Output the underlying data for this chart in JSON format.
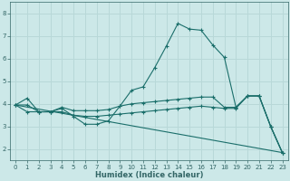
{
  "xlabel": "Humidex (Indice chaleur)",
  "background_color": "#cce8e8",
  "grid_color": "#b8d8d8",
  "line_color": "#1a6e6a",
  "xlim": [
    -0.5,
    23.5
  ],
  "ylim": [
    1.5,
    8.5
  ],
  "yticks": [
    2,
    3,
    4,
    5,
    6,
    7,
    8
  ],
  "xticks": [
    0,
    1,
    2,
    3,
    4,
    5,
    6,
    7,
    8,
    9,
    10,
    11,
    12,
    13,
    14,
    15,
    16,
    17,
    18,
    19,
    20,
    21,
    22,
    23
  ],
  "xlabel_fontsize": 6.0,
  "tick_fontsize": 5.0,
  "lines": [
    {
      "x": [
        0,
        1,
        2,
        3,
        4,
        5,
        6,
        7,
        8,
        9,
        10,
        11,
        12,
        13,
        14,
        15,
        16,
        17,
        18,
        19,
        20,
        21,
        22,
        23
      ],
      "y": [
        3.95,
        4.25,
        3.65,
        3.65,
        3.8,
        3.45,
        3.1,
        3.1,
        3.25,
        3.9,
        4.6,
        4.75,
        5.6,
        6.55,
        7.55,
        7.3,
        7.25,
        6.6,
        6.05,
        3.85,
        4.35,
        4.35,
        3.0,
        1.85
      ],
      "marker": true
    },
    {
      "x": [
        0,
        1,
        2,
        3,
        4,
        5,
        6,
        7,
        8,
        9,
        10,
        11,
        12,
        13,
        14,
        15,
        16,
        17,
        18,
        19,
        20,
        21,
        22,
        23
      ],
      "y": [
        3.95,
        3.95,
        3.65,
        3.65,
        3.85,
        3.7,
        3.7,
        3.7,
        3.75,
        3.9,
        4.0,
        4.05,
        4.1,
        4.15,
        4.2,
        4.25,
        4.3,
        4.3,
        3.85,
        3.85,
        4.35,
        4.35,
        3.0,
        1.85
      ],
      "marker": true
    },
    {
      "x": [
        0,
        1,
        2,
        3,
        4,
        5,
        6,
        7,
        8,
        9,
        10,
        11,
        12,
        13,
        14,
        15,
        16,
        17,
        18,
        19,
        20,
        21,
        22,
        23
      ],
      "y": [
        3.95,
        3.65,
        3.65,
        3.65,
        3.65,
        3.5,
        3.45,
        3.45,
        3.5,
        3.55,
        3.6,
        3.65,
        3.7,
        3.75,
        3.8,
        3.85,
        3.9,
        3.85,
        3.8,
        3.8,
        4.35,
        4.35,
        3.0,
        1.85
      ],
      "marker": true
    },
    {
      "x": [
        0,
        23
      ],
      "y": [
        3.95,
        1.85
      ],
      "marker": false
    }
  ]
}
